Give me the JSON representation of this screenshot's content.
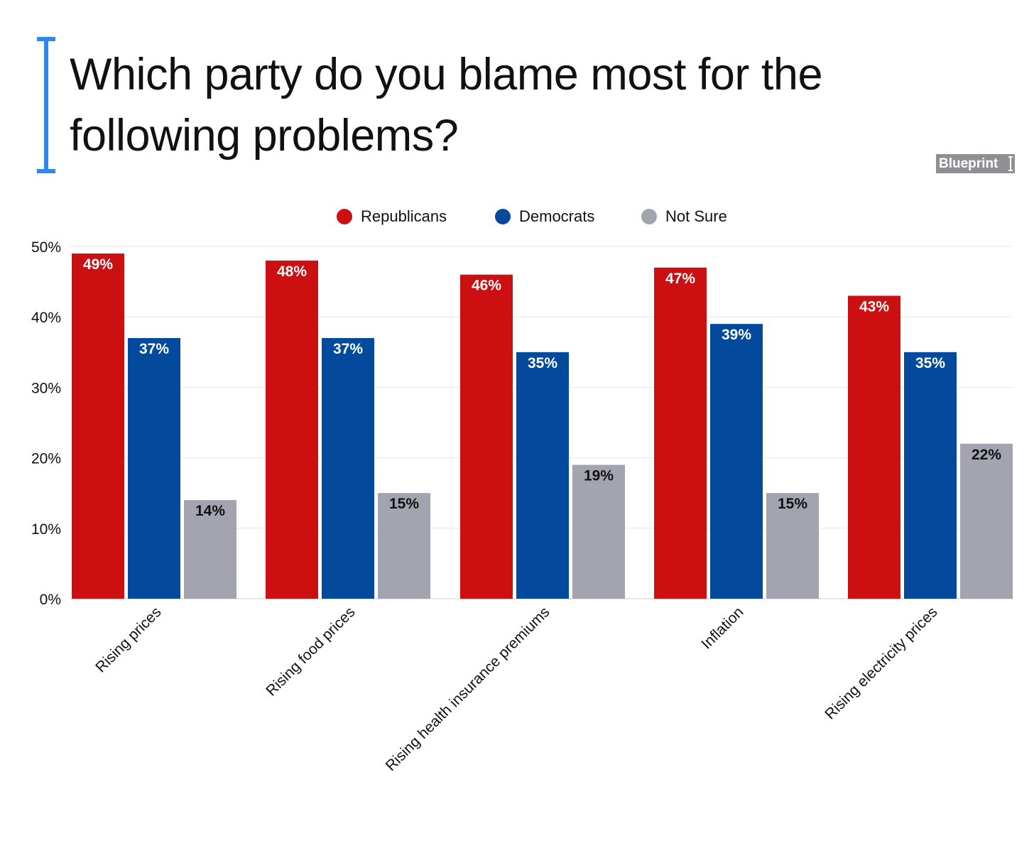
{
  "header": {
    "title": "Which party do you blame most for the following problems?",
    "brand": "Blueprint",
    "accent_color": "#2f86f0"
  },
  "legend": [
    {
      "label": "Republicans",
      "color": "#cc1012"
    },
    {
      "label": "Democrats",
      "color": "#034a9c"
    },
    {
      "label": "Not Sure",
      "color": "#a2a5b0"
    }
  ],
  "chart_data": {
    "type": "bar",
    "title": "Which party do you blame most for the following problems?",
    "xlabel": "",
    "ylabel": "",
    "ylim": [
      0,
      50
    ],
    "yticks": [
      0,
      10,
      20,
      30,
      40,
      50
    ],
    "ytick_labels": [
      "0%",
      "10%",
      "20%",
      "30%",
      "40%",
      "50%"
    ],
    "grid": true,
    "legend_position": "top-center",
    "categories": [
      "Rising prices",
      "Rising food prices",
      "Rising health insurance premiums",
      "Inflation",
      "Rising electricity prices"
    ],
    "series": [
      {
        "name": "Republicans",
        "color": "#cc1012",
        "label_color": "#ffffff",
        "values": [
          49,
          48,
          46,
          47,
          43
        ],
        "labels": [
          "49%",
          "48%",
          "46%",
          "47%",
          "43%"
        ]
      },
      {
        "name": "Democrats",
        "color": "#034a9c",
        "label_color": "#ffffff",
        "values": [
          37,
          37,
          35,
          39,
          35
        ],
        "labels": [
          "37%",
          "37%",
          "35%",
          "39%",
          "35%"
        ]
      },
      {
        "name": "Not Sure",
        "color": "#a2a5b0",
        "label_color": "#111111",
        "values": [
          14,
          15,
          19,
          15,
          22
        ],
        "labels": [
          "14%",
          "15%",
          "19%",
          "15%",
          "22%"
        ]
      }
    ]
  }
}
